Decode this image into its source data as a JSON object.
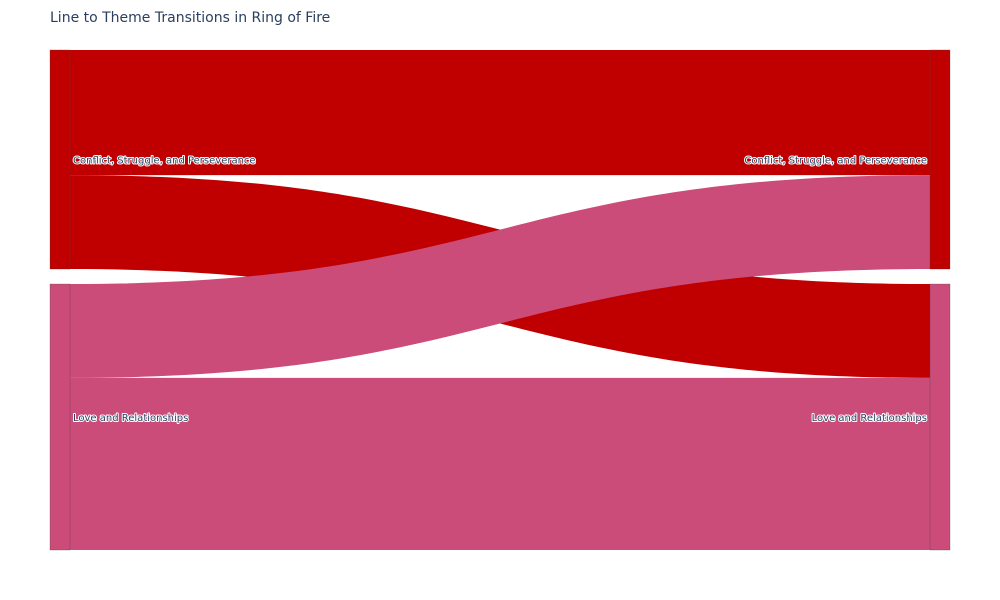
{
  "chart_data": {
    "type": "sankey",
    "title": "Line to Theme Transitions in Ring of Fire",
    "nodes": [
      {
        "id": "src-conflict",
        "label": "Conflict, Struggle, and Perseverance",
        "column": "source",
        "color": "#c00000"
      },
      {
        "id": "src-love",
        "label": "Love and Relationships",
        "column": "source",
        "color": "#cb4c78"
      },
      {
        "id": "tgt-conflict",
        "label": "Conflict, Struggle, and Perseverance",
        "column": "target",
        "color": "#c00000"
      },
      {
        "id": "tgt-love",
        "label": "Love and Relationships",
        "column": "target",
        "color": "#cb4c78"
      }
    ],
    "links": [
      {
        "source": "src-conflict",
        "target": "tgt-conflict",
        "value": 4,
        "color": "#c00000"
      },
      {
        "source": "src-conflict",
        "target": "tgt-love",
        "value": 3,
        "color": "#c00000"
      },
      {
        "source": "src-love",
        "target": "tgt-conflict",
        "value": 3,
        "color": "#cb4c78"
      },
      {
        "source": "src-love",
        "target": "tgt-love",
        "value": 5.5,
        "color": "#cb4c78"
      }
    ]
  }
}
